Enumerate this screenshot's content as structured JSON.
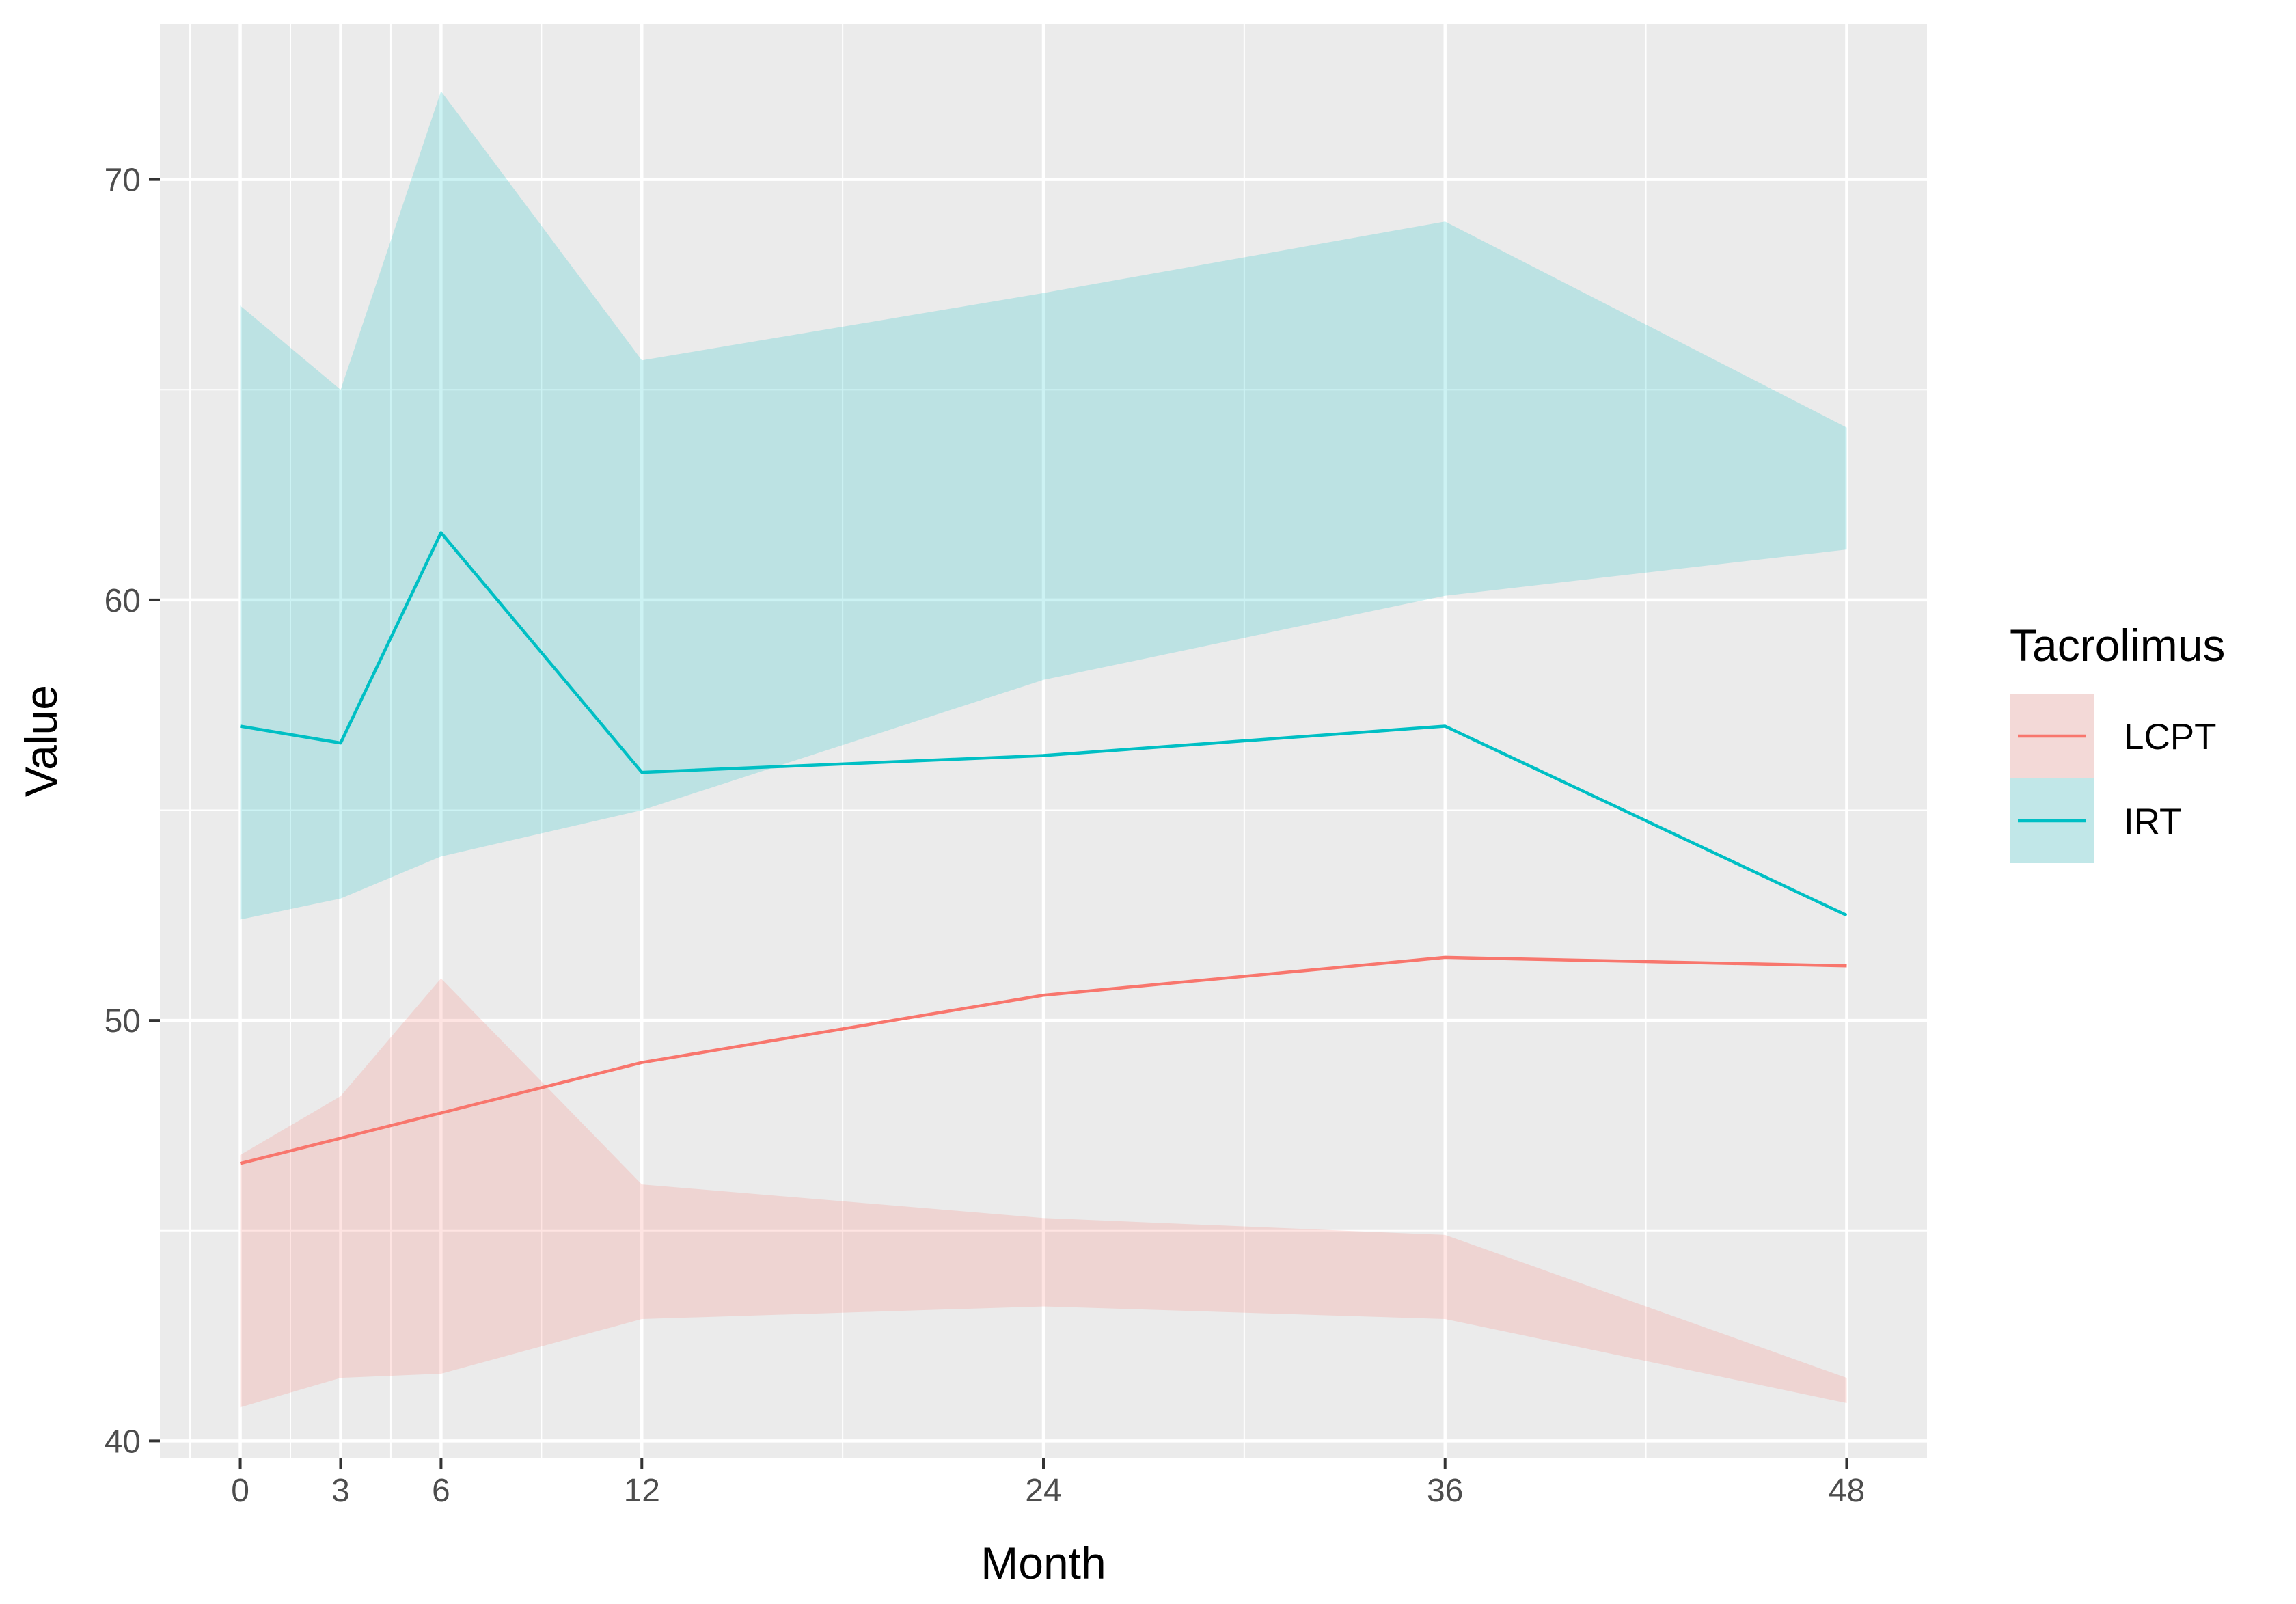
{
  "chart_data": {
    "type": "line",
    "xlabel": "Month",
    "ylabel": "Value",
    "x": [
      0,
      3,
      6,
      12,
      24,
      36,
      48
    ],
    "x_ticks": [
      "0",
      "3",
      "6",
      "12",
      "24",
      "36",
      "48"
    ],
    "y_ticks": [
      "40",
      "50",
      "60",
      "70"
    ],
    "xlim": [
      -2.4,
      50.4
    ],
    "ylim": [
      39.6,
      73.7
    ],
    "grid": true,
    "legend_title": "Tacrolimus",
    "legend_position": "right",
    "series": [
      {
        "name": "LCPT",
        "color": "#F8766D",
        "values": [
          46.6,
          47.2,
          47.8,
          49.0,
          50.6,
          51.5,
          51.3
        ],
        "lower": [
          40.8,
          41.5,
          41.6,
          42.9,
          43.2,
          42.9,
          40.9
        ],
        "upper": [
          46.8,
          48.2,
          51.0,
          46.1,
          45.3,
          44.9,
          41.5
        ]
      },
      {
        "name": "IRT",
        "color": "#00BFC4",
        "values": [
          57.0,
          56.6,
          61.6,
          55.9,
          56.3,
          57.0,
          52.5
        ],
        "lower": [
          52.4,
          52.9,
          53.9,
          55.0,
          58.1,
          60.1,
          61.2
        ],
        "upper": [
          67.0,
          65.0,
          72.1,
          65.7,
          67.3,
          69.0,
          64.1
        ]
      }
    ]
  }
}
